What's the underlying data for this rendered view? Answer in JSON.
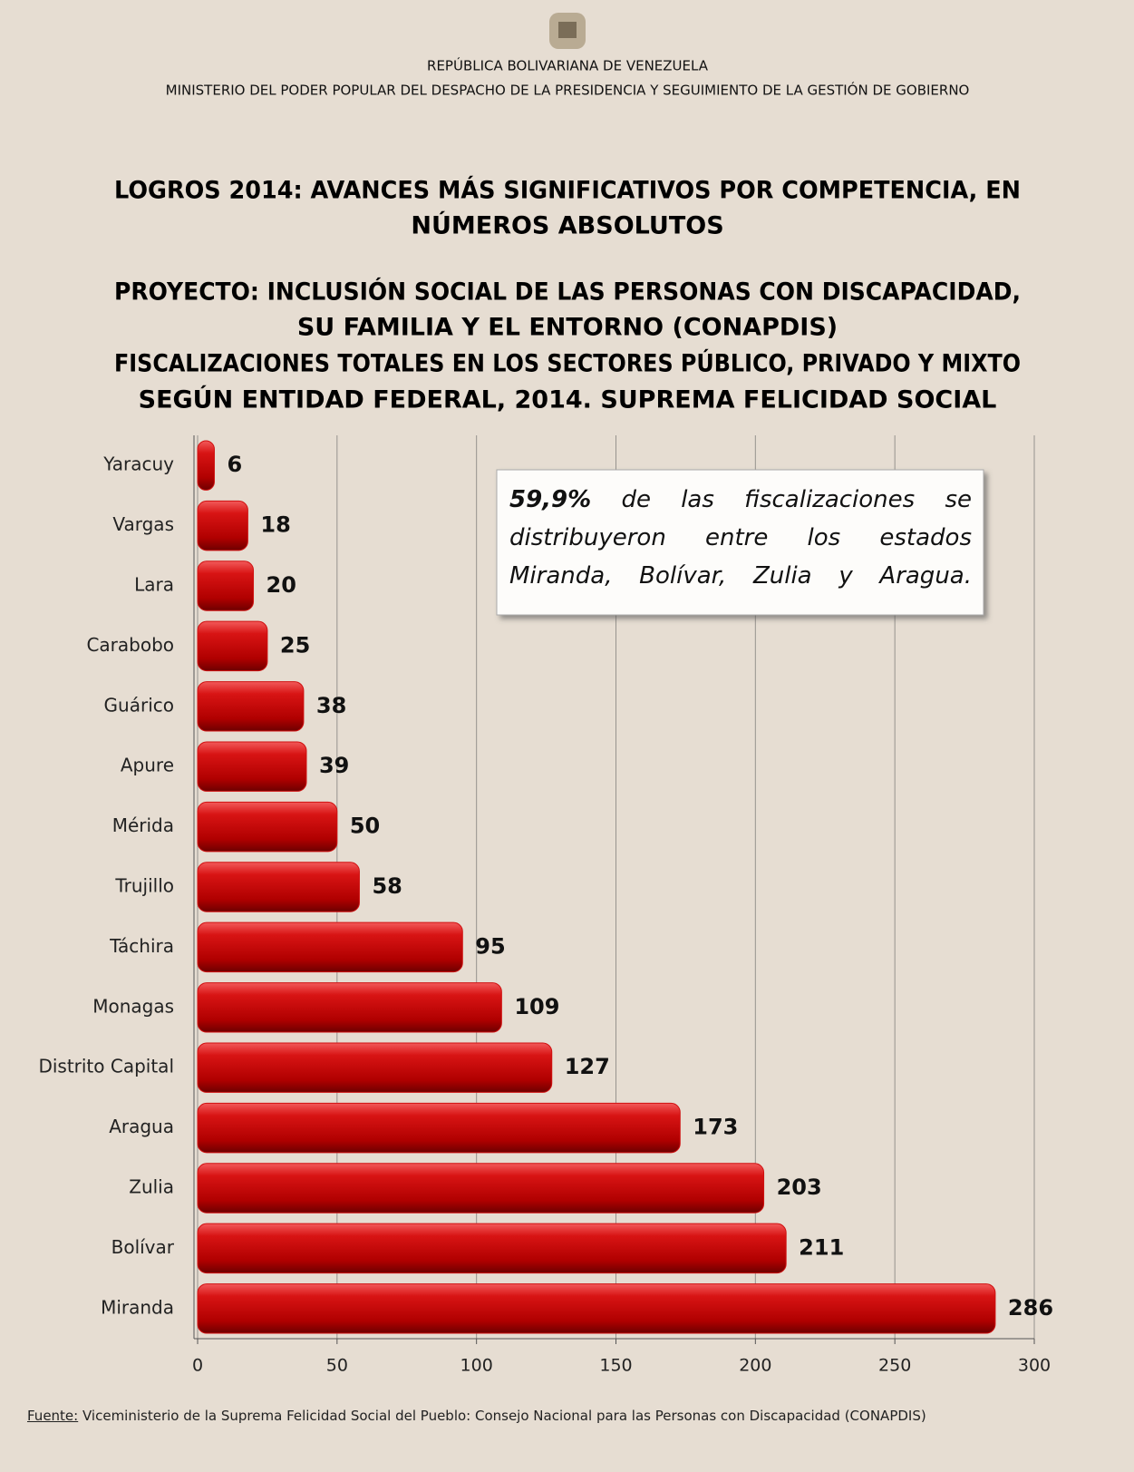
{
  "header": {
    "country": "REPÚBLICA BOLIVARIANA DE VENEZUELA",
    "ministry": "MINISTERIO DEL PODER POPULAR DEL DESPACHO DE LA PRESIDENCIA Y SEGUIMIENTO DE LA GESTIÓN DE GOBIERNO"
  },
  "chart_data": {
    "type": "hbar",
    "title": [
      "LOGROS 2014: AVANCES MÁS SIGNIFICATIVOS POR COMPETENCIA, EN",
      "NÚMEROS ABSOLUTOS"
    ],
    "subtitle": [
      "PROYECTO: INCLUSIÓN SOCIAL DE LAS PERSONAS CON DISCAPACIDAD,",
      "SU FAMILIA Y EL ENTORNO (CONAPDIS)",
      "FISCALIZACIONES TOTALES EN LOS SECTORES PÚBLICO, PRIVADO Y MIXTO",
      "SEGÚN ENTIDAD FEDERAL, 2014. SUPREMA FELICIDAD SOCIAL"
    ],
    "categories": [
      "Yaracuy",
      "Vargas",
      "Lara",
      "Carabobo",
      "Guárico",
      "Apure",
      "Mérida",
      "Trujillo",
      "Táchira",
      "Monagas",
      "Distrito Capital",
      "Aragua",
      "Zulia",
      "Bolívar",
      "Miranda"
    ],
    "values": [
      6,
      18,
      20,
      25,
      38,
      39,
      50,
      58,
      95,
      109,
      127,
      173,
      203,
      211,
      286
    ],
    "color": "#d01010",
    "xlim": [
      0,
      300
    ],
    "xticks": [
      0,
      50,
      100,
      150,
      200,
      250,
      300
    ],
    "grid": true,
    "annotation": {
      "highlight": "59,9%",
      "text": "de las fiscalizaciones se distribuyeron entre los estados Miranda, Bolívar, Zulia y Aragua."
    },
    "source": {
      "label": "Fuente:",
      "text": "Viceministerio de la Suprema Felicidad Social del Pueblo: Consejo Nacional para las Personas con Discapacidad (CONAPDIS)"
    }
  }
}
